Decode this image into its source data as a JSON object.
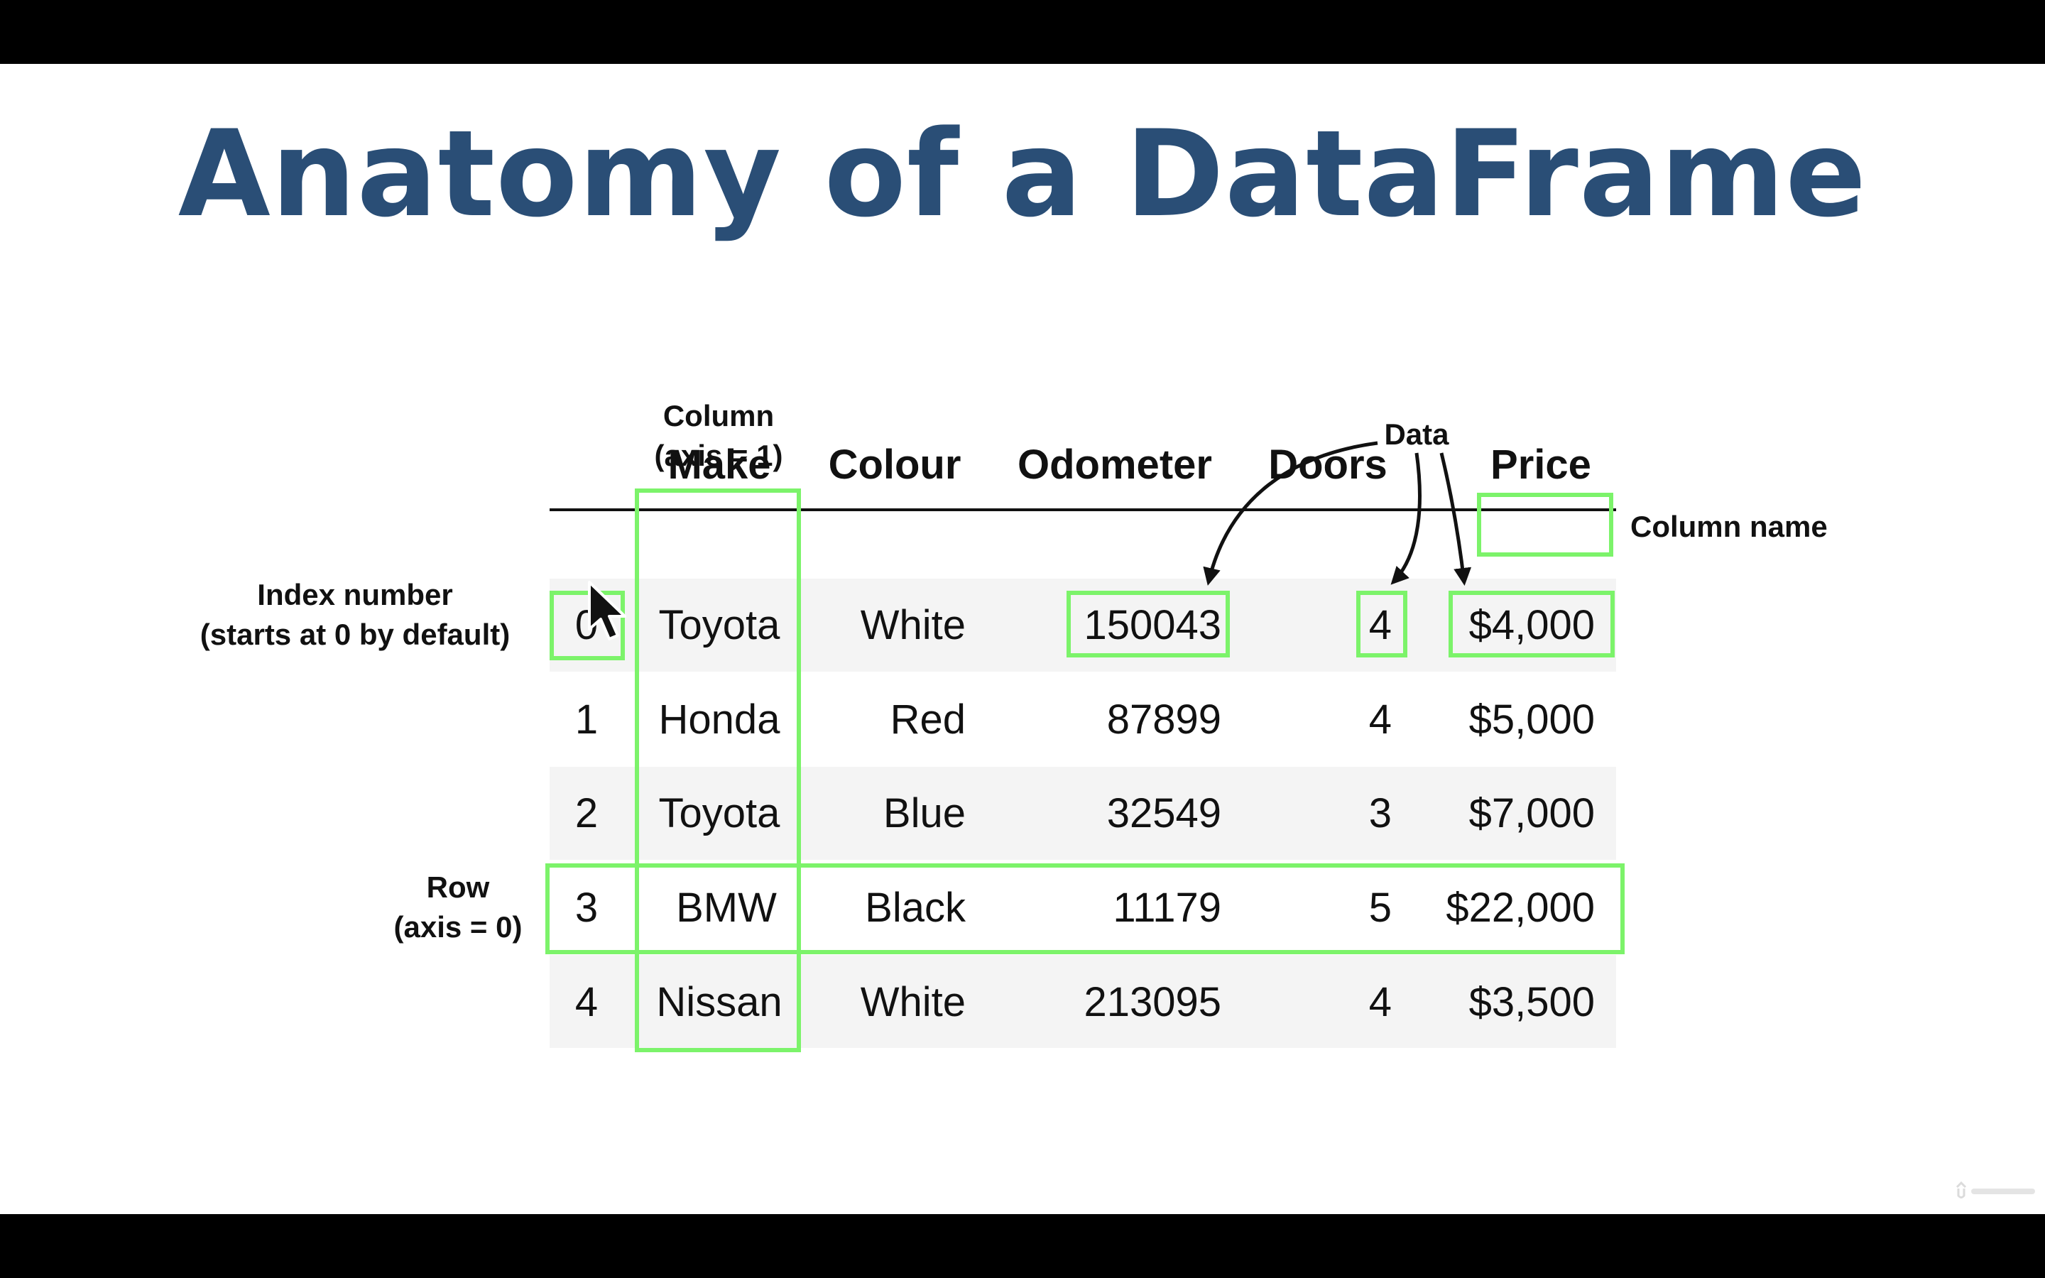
{
  "title": "Anatomy of a DataFrame",
  "annotations": {
    "column_label": [
      "Column",
      "(axis = 1)"
    ],
    "data_label": "Data",
    "column_name_label": "Column name",
    "index_label": [
      "Index number",
      "(starts at 0 by default)"
    ],
    "row_label": [
      "Row",
      "(axis = 0)"
    ]
  },
  "table": {
    "columns": [
      "Make",
      "Colour",
      "Odometer",
      "Doors",
      "Price"
    ],
    "rows": [
      {
        "index": "0",
        "make": "Toyota",
        "colour": "White",
        "odometer": "150043",
        "doors": "4",
        "price": "$4,000"
      },
      {
        "index": "1",
        "make": "Honda",
        "colour": "Red",
        "odometer": "87899",
        "doors": "4",
        "price": "$5,000"
      },
      {
        "index": "2",
        "make": "Toyota",
        "colour": "Blue",
        "odometer": "32549",
        "doors": "3",
        "price": "$7,000"
      },
      {
        "index": "3",
        "make": "BMW",
        "colour": "Black",
        "odometer": "11179",
        "doors": "5",
        "price": "$22,000"
      },
      {
        "index": "4",
        "make": "Nissan",
        "colour": "White",
        "odometer": "213095",
        "doors": "4",
        "price": "$3,500"
      }
    ]
  },
  "colors": {
    "title": "#2a4e76",
    "highlight": "#7cf36a",
    "stripe": "#f4f4f4"
  },
  "icons": {
    "cursor": "mouse-pointer-icon",
    "watermark": "udemy-logo"
  }
}
